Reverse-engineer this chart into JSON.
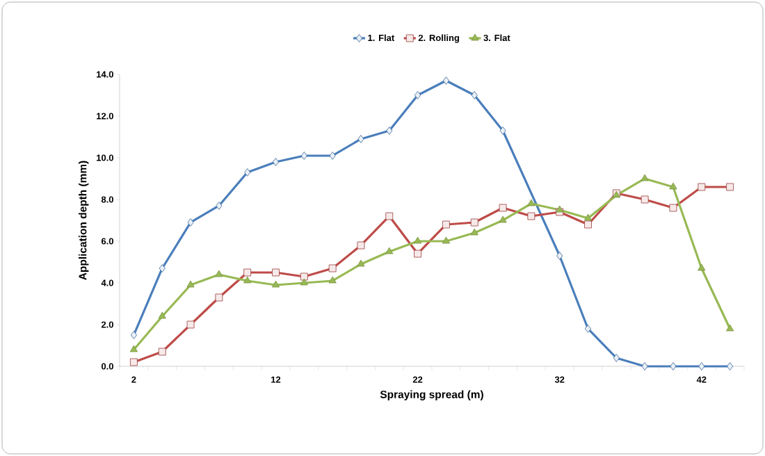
{
  "chart_data": {
    "type": "line",
    "xlabel": "Spraying spread (m)",
    "ylabel": "Application depth (mm)",
    "categories": [
      "2",
      null,
      null,
      null,
      null,
      "12",
      null,
      null,
      null,
      null,
      "22",
      null,
      null,
      null,
      null,
      "32",
      null,
      null,
      null,
      null,
      "42",
      null
    ],
    "series": [
      {
        "name": "1. Flat",
        "color": "#4a7ebb",
        "marker": "diamond",
        "values": [
          1.5,
          4.7,
          6.9,
          7.7,
          9.3,
          9.8,
          10.1,
          10.1,
          10.9,
          11.3,
          13.0,
          13.7,
          13.0,
          11.3,
          null,
          5.3,
          1.8,
          0.4,
          0.0,
          0.0,
          0.0,
          0.0
        ]
      },
      {
        "name": "2. Rolling",
        "color": "#be4b48",
        "marker": "square",
        "values": [
          0.2,
          0.7,
          2.0,
          3.3,
          4.5,
          4.5,
          4.3,
          4.7,
          5.8,
          7.2,
          5.4,
          6.8,
          6.9,
          7.6,
          7.2,
          7.4,
          6.8,
          8.3,
          8.0,
          7.6,
          8.6,
          8.6
        ]
      },
      {
        "name": "3. Flat",
        "color": "#98b954",
        "marker": "triangle",
        "values": [
          0.8,
          2.4,
          3.9,
          4.4,
          4.1,
          3.9,
          4.0,
          4.1,
          4.9,
          5.5,
          6.0,
          6.0,
          6.4,
          7.0,
          7.8,
          7.5,
          7.1,
          8.2,
          9.0,
          8.6,
          4.7,
          1.8
        ]
      }
    ],
    "ylim": [
      0,
      14
    ],
    "yticks": [
      {
        "value": 0,
        "label": "0.0"
      },
      {
        "value": 2,
        "label": "2.0"
      },
      {
        "value": 4,
        "label": "4.0"
      },
      {
        "value": 6,
        "label": "6.0"
      },
      {
        "value": 8,
        "label": "8.0"
      },
      {
        "value": 10,
        "label": "10.0"
      },
      {
        "value": 12,
        "label": "12.0"
      },
      {
        "value": 14,
        "label": "14.0"
      }
    ],
    "legend": "top"
  }
}
